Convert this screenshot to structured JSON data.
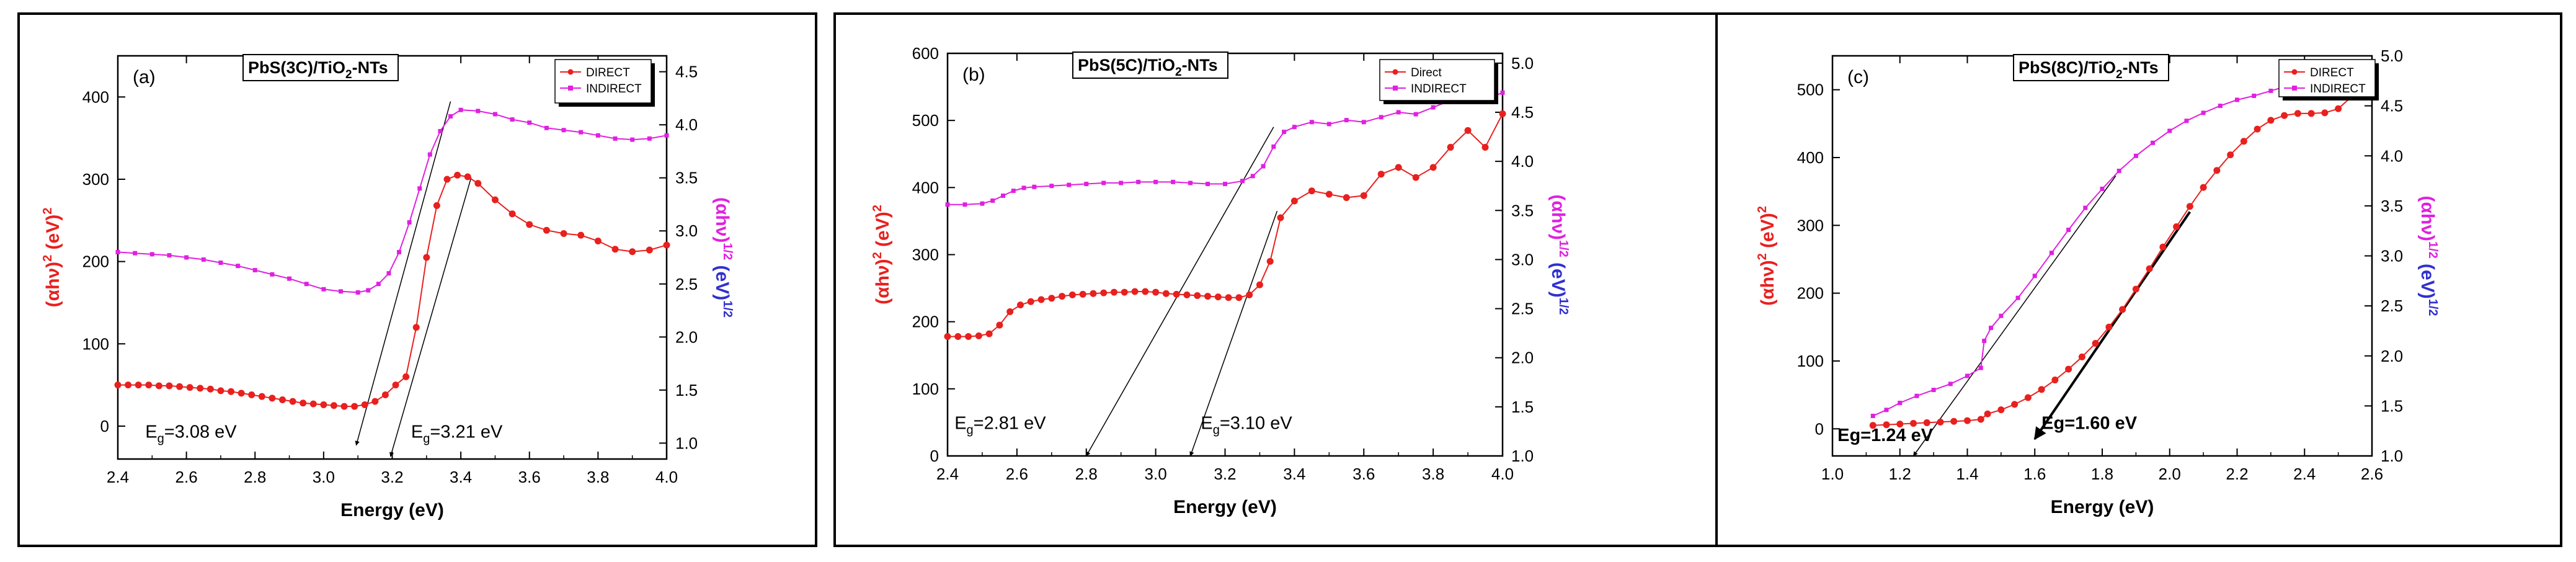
{
  "chart_data": [
    {
      "panel_label": "(a)",
      "type": "scatter",
      "title_main": "PbS(3C)/TiO",
      "title_sub": "2",
      "title_tail": "-NTs",
      "xlabel": "Energy (eV)",
      "xlim": [
        2.4,
        4.0
      ],
      "xticks": [
        "2.4",
        "2.6",
        "2.8",
        "3.0",
        "3.2",
        "3.4",
        "3.6",
        "3.8",
        "4.0"
      ],
      "ylim_left": [
        -40,
        450
      ],
      "yticks_left": [
        "0",
        "100",
        "200",
        "300",
        "400"
      ],
      "ylabel_left": "(αhν)² (eV)²",
      "ylim_right": [
        0.85,
        4.65
      ],
      "yticks_right": [
        "1.0",
        "1.5",
        "2.0",
        "2.5",
        "3.0",
        "3.5",
        "4.0",
        "4.5"
      ],
      "ylabel_right": "(αhν)^1/2 (eV)^1/2",
      "legend": [
        "DIRECT",
        "INDIRECT"
      ],
      "series": [
        {
          "name": "DIRECT",
          "axis": "left",
          "color": "#e8201e",
          "x": [
            2.4,
            2.43,
            2.46,
            2.49,
            2.52,
            2.55,
            2.58,
            2.61,
            2.64,
            2.67,
            2.7,
            2.73,
            2.76,
            2.79,
            2.82,
            2.85,
            2.88,
            2.91,
            2.94,
            2.97,
            3.0,
            3.03,
            3.06,
            3.09,
            3.12,
            3.15,
            3.18,
            3.21,
            3.24,
            3.27,
            3.3,
            3.33,
            3.36,
            3.39,
            3.42,
            3.45,
            3.5,
            3.55,
            3.6,
            3.65,
            3.7,
            3.75,
            3.8,
            3.85,
            3.9,
            3.95,
            4.0
          ],
          "y": [
            50,
            50,
            50,
            50,
            49,
            49,
            48,
            47,
            46,
            45,
            43,
            42,
            40,
            38,
            36,
            34,
            32,
            30,
            28,
            27,
            26,
            25,
            24,
            24,
            26,
            30,
            38,
            50,
            60,
            120,
            205,
            268,
            300,
            305,
            303,
            295,
            275,
            258,
            245,
            238,
            234,
            232,
            225,
            215,
            212,
            214,
            220
          ]
        },
        {
          "name": "INDIRECT",
          "axis": "right",
          "color": "#e020e0",
          "x": [
            2.4,
            2.45,
            2.5,
            2.55,
            2.6,
            2.65,
            2.7,
            2.75,
            2.8,
            2.85,
            2.9,
            2.95,
            3.0,
            3.05,
            3.1,
            3.13,
            3.16,
            3.19,
            3.22,
            3.25,
            3.28,
            3.31,
            3.34,
            3.37,
            3.4,
            3.45,
            3.5,
            3.55,
            3.6,
            3.65,
            3.7,
            3.75,
            3.8,
            3.85,
            3.9,
            3.95,
            4.0
          ],
          "y": [
            2.8,
            2.79,
            2.78,
            2.77,
            2.75,
            2.73,
            2.7,
            2.67,
            2.63,
            2.59,
            2.55,
            2.5,
            2.45,
            2.43,
            2.42,
            2.44,
            2.5,
            2.6,
            2.8,
            3.08,
            3.4,
            3.72,
            3.94,
            4.08,
            4.14,
            4.13,
            4.1,
            4.05,
            4.02,
            3.97,
            3.95,
            3.93,
            3.9,
            3.87,
            3.86,
            3.87,
            3.9
          ]
        }
      ],
      "fit_lines": [
        {
          "axis": "right",
          "x": [
            3.095,
            3.37
          ],
          "y": [
            0.98,
            4.22
          ]
        },
        {
          "axis": "left",
          "x": [
            3.195,
            3.43
          ],
          "y": [
            -37,
            302
          ]
        }
      ],
      "annotations": [
        {
          "base": "E",
          "sub": "g",
          "text": "=3.08 eV",
          "x": 2.48,
          "y": -14,
          "axis": "left"
        },
        {
          "base": "E",
          "sub": "g",
          "text": "=3.21 eV",
          "x": 3.255,
          "y": -14,
          "axis": "left"
        }
      ]
    },
    {
      "panel_label": "(b)",
      "type": "scatter",
      "title_main": "PbS(5C)/TiO",
      "title_sub": "2",
      "title_tail": "-NTs",
      "xlabel": "Energy (eV)",
      "xlim": [
        2.4,
        4.0
      ],
      "xticks": [
        "2.4",
        "2.6",
        "2.8",
        "3.0",
        "3.2",
        "3.4",
        "3.6",
        "3.8",
        "4.0"
      ],
      "ylim_left": [
        0,
        600
      ],
      "yticks_left": [
        "0",
        "100",
        "200",
        "300",
        "400",
        "500",
        "600"
      ],
      "ylabel_left": "(αhν)² (eV)²",
      "ylim_right": [
        1.0,
        5.1
      ],
      "yticks_right": [
        "1.0",
        "1.5",
        "2.0",
        "2.5",
        "3.0",
        "3.5",
        "4.0",
        "4.5",
        "5.0"
      ],
      "ylabel_right": "(αhν)^1/2 (eV)^1/2",
      "legend": [
        "Direct",
        "INDIRECT"
      ],
      "series": [
        {
          "name": "Direct",
          "axis": "left",
          "color": "#e8201e",
          "x": [
            2.4,
            2.43,
            2.46,
            2.49,
            2.52,
            2.55,
            2.58,
            2.61,
            2.64,
            2.67,
            2.7,
            2.73,
            2.76,
            2.79,
            2.82,
            2.85,
            2.88,
            2.91,
            2.94,
            2.97,
            3.0,
            3.03,
            3.06,
            3.09,
            3.12,
            3.15,
            3.18,
            3.21,
            3.24,
            3.27,
            3.3,
            3.33,
            3.36,
            3.4,
            3.45,
            3.5,
            3.55,
            3.6,
            3.65,
            3.7,
            3.75,
            3.8,
            3.85,
            3.9,
            3.95,
            4.0
          ],
          "y": [
            178,
            178,
            178,
            179,
            182,
            195,
            215,
            225,
            230,
            233,
            235,
            238,
            240,
            241,
            242,
            243,
            244,
            244,
            245,
            245,
            244,
            242,
            241,
            240,
            239,
            238,
            237,
            236,
            236,
            240,
            255,
            290,
            355,
            380,
            395,
            390,
            385,
            388,
            420,
            430,
            415,
            430,
            460,
            485,
            460,
            510
          ]
        },
        {
          "name": "INDIRECT",
          "axis": "right",
          "color": "#e020e0",
          "x": [
            2.4,
            2.45,
            2.5,
            2.53,
            2.56,
            2.59,
            2.62,
            2.65,
            2.7,
            2.75,
            2.8,
            2.85,
            2.9,
            2.95,
            3.0,
            3.05,
            3.1,
            3.15,
            3.2,
            3.25,
            3.28,
            3.31,
            3.34,
            3.37,
            3.4,
            3.45,
            3.5,
            3.55,
            3.6,
            3.65,
            3.7,
            3.75,
            3.8,
            3.85,
            3.9,
            3.95,
            4.0
          ],
          "y": [
            3.56,
            3.56,
            3.57,
            3.6,
            3.65,
            3.7,
            3.73,
            3.74,
            3.75,
            3.76,
            3.77,
            3.78,
            3.78,
            3.79,
            3.79,
            3.79,
            3.78,
            3.77,
            3.77,
            3.8,
            3.85,
            3.95,
            4.15,
            4.3,
            4.35,
            4.4,
            4.38,
            4.42,
            4.4,
            4.45,
            4.5,
            4.48,
            4.55,
            4.62,
            4.68,
            4.63,
            4.7
          ]
        }
      ],
      "fit_lines": [
        {
          "axis": "right",
          "x": [
            2.8,
            3.34
          ],
          "y": [
            1.0,
            4.35
          ]
        },
        {
          "axis": "left",
          "x": [
            3.1,
            3.35
          ],
          "y": [
            0,
            365
          ]
        }
      ],
      "annotations": [
        {
          "base": "E",
          "sub": "g",
          "text": "=2.81 eV",
          "x": 2.42,
          "y": 40,
          "axis": "left"
        },
        {
          "base": "E",
          "sub": "g",
          "text": "=3.10 eV",
          "x": 3.13,
          "y": 40,
          "axis": "left"
        }
      ]
    },
    {
      "panel_label": "(c)",
      "type": "scatter",
      "title_main": "PbS(8C)/TiO",
      "title_sub": "2",
      "title_tail": "-NTs",
      "xlabel": "Energy (eV)",
      "xlim": [
        1.0,
        2.6
      ],
      "xticks": [
        "1.0",
        "1.2",
        "1.4",
        "1.6",
        "1.8",
        "2.0",
        "2.2",
        "2.4",
        "2.6"
      ],
      "ylim_left": [
        -40,
        550
      ],
      "yticks_left": [
        "0",
        "100",
        "200",
        "300",
        "400",
        "500"
      ],
      "ylabel_left": "(αhν)² (eV)²",
      "ylim_right": [
        1.0,
        5.0
      ],
      "yticks_right": [
        "1.0",
        "1.5",
        "2.0",
        "2.5",
        "3.0",
        "3.5",
        "4.0",
        "4.5",
        "5.0"
      ],
      "ylabel_right": "(αhν)^1/2 (eV)^1/2",
      "legend": [
        "DIRECT",
        "INDIRECT"
      ],
      "series": [
        {
          "name": "DIRECT",
          "axis": "left",
          "color": "#e8201e",
          "x": [
            1.12,
            1.16,
            1.2,
            1.24,
            1.28,
            1.32,
            1.36,
            1.4,
            1.44,
            1.46,
            1.5,
            1.54,
            1.58,
            1.62,
            1.66,
            1.7,
            1.74,
            1.78,
            1.82,
            1.86,
            1.9,
            1.94,
            1.98,
            2.02,
            2.06,
            2.1,
            2.14,
            2.18,
            2.22,
            2.26,
            2.3,
            2.34,
            2.38,
            2.42,
            2.46,
            2.5,
            2.54,
            2.58
          ],
          "y": [
            5,
            6,
            7,
            8,
            9,
            10,
            11,
            12,
            14,
            22,
            28,
            36,
            46,
            58,
            72,
            88,
            106,
            126,
            150,
            176,
            206,
            236,
            268,
            298,
            328,
            356,
            381,
            404,
            424,
            442,
            455,
            462,
            465,
            465,
            466,
            472,
            490,
            520
          ]
        },
        {
          "name": "INDIRECT",
          "axis": "right",
          "color": "#e020e0",
          "x": [
            1.12,
            1.16,
            1.2,
            1.25,
            1.3,
            1.35,
            1.4,
            1.44,
            1.45,
            1.47,
            1.5,
            1.55,
            1.6,
            1.65,
            1.7,
            1.75,
            1.8,
            1.85,
            1.9,
            1.95,
            2.0,
            2.05,
            2.1,
            2.15,
            2.2,
            2.25,
            2.3,
            2.35,
            2.4,
            2.45,
            2.5,
            2.55,
            2.6
          ],
          "y": [
            1.4,
            1.46,
            1.53,
            1.6,
            1.66,
            1.72,
            1.8,
            1.88,
            2.15,
            2.28,
            2.4,
            2.58,
            2.8,
            3.03,
            3.26,
            3.48,
            3.67,
            3.85,
            4.0,
            4.13,
            4.25,
            4.35,
            4.43,
            4.5,
            4.56,
            4.6,
            4.65,
            4.7,
            4.74,
            4.78,
            4.82,
            4.86,
            4.9
          ]
        }
      ],
      "fit_lines": [
        {
          "axis": "right",
          "x": [
            1.24,
            1.84
          ],
          "y": [
            1.0,
            3.8
          ]
        },
        {
          "axis": "left",
          "x": [
            1.6,
            2.06
          ],
          "y": [
            -15,
            320
          ]
        }
      ],
      "annotations": [
        {
          "base": "Eg",
          "sub": "",
          "text": "=1.24 eV",
          "x": 1.015,
          "y": -18,
          "axis": "left"
        },
        {
          "base": "Eg",
          "sub": "",
          "text": "=1.60 eV",
          "x": 1.62,
          "y": 0,
          "axis": "left"
        }
      ]
    }
  ]
}
